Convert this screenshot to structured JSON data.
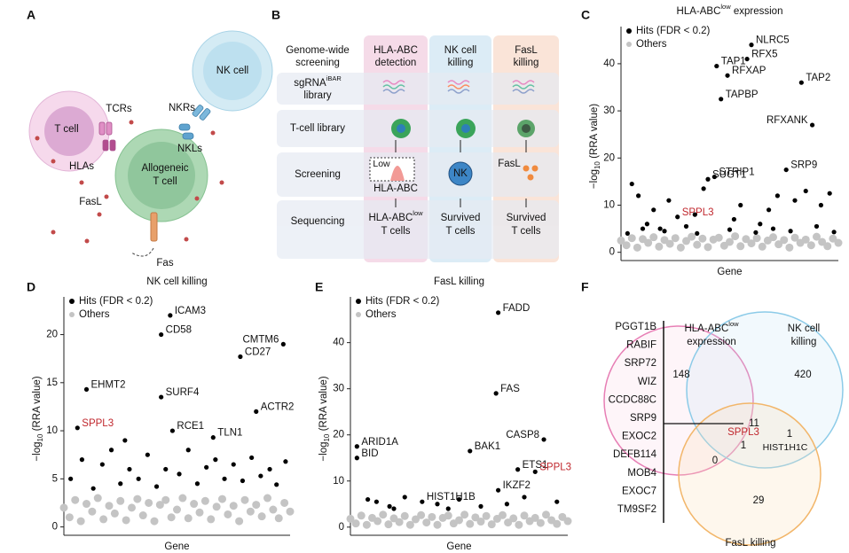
{
  "panels": {
    "a": "A",
    "b": "B",
    "c": "C",
    "d": "D",
    "e": "E",
    "f": "F"
  },
  "panel_a": {
    "t_cell": "T cell",
    "nk_cell": "NK cell",
    "tcrs": "TCRs",
    "hlas": "HLAs",
    "nkrs": "NKRs",
    "nkls": "NKLs",
    "allogeneic_lines": [
      "Allogeneic",
      "T cell"
    ],
    "fasl": "FasL",
    "fas": "Fas"
  },
  "panel_b": {
    "columns": [
      [
        "Genome-wide",
        "screening"
      ],
      [
        "HLA-ABC",
        "detection"
      ],
      [
        "NK cell",
        "killing"
      ],
      [
        "FasL",
        "killing"
      ]
    ],
    "rows": {
      "sgrna": "sgRNA",
      "sgrna_sup": "iBAR",
      "sgrna_line2": "library",
      "tcell": "T-cell library",
      "screening": "Screening",
      "sequencing": "Sequencing"
    },
    "screening_cells": {
      "low": "Low",
      "hla": "HLA-ABC",
      "nk": "NK",
      "fasl": "FasL"
    },
    "sequencing_cells": {
      "hla": "HLA-ABC",
      "hla_sup": "low",
      "hla_line2": "T cells",
      "nk": [
        "Survived",
        "T cells"
      ],
      "fasl": [
        "Survived",
        "T cells"
      ]
    }
  },
  "chart_data": [
    {
      "type": "scatter",
      "title": "HLA-ABC",
      "title_superscript": "low",
      "title_suffix": " expression",
      "ylabel": {
        "prefix": "−log",
        "subscript": "10",
        "suffix": " (RRA value)"
      },
      "xlabel": "Gene",
      "xlim": [
        0,
        100
      ],
      "ylim": [
        -1,
        46
      ],
      "yticks": [
        0,
        10,
        20,
        30,
        40
      ],
      "highlight": "SPPL3",
      "highlight_color": "#c0272d",
      "series": [
        {
          "name": "Others",
          "color": "#c4c4c4",
          "x": [
            0,
            2.5,
            5,
            7.5,
            10,
            12.5,
            15,
            17.5,
            20,
            22.5,
            25,
            27.5,
            30,
            32.5,
            35,
            37.5,
            40,
            42.5,
            45,
            47.5,
            50,
            52.5,
            55,
            57.5,
            60,
            62.5,
            65,
            67.5,
            70,
            72.5,
            75,
            77.5,
            80,
            82.5,
            85,
            87.5,
            90,
            92.5,
            95,
            97.5,
            100
          ],
          "values": [
            2.5,
            1.5,
            3,
            1,
            2.8,
            2,
            3.2,
            1.2,
            2.6,
            1.8,
            3,
            1,
            2.4,
            3.3,
            1.6,
            2.9,
            1.1,
            2.7,
            3.1,
            1.4,
            2.2,
            3.4,
            1.3,
            2.8,
            1.9,
            3,
            1.2,
            2.5,
            3.2,
            1.7,
            2.6,
            1,
            3.1,
            2,
            2.7,
            1.5,
            3.3,
            2.2,
            1.3,
            2.9,
            2
          ]
        },
        {
          "name": "Hits (FDR < 0.2)",
          "color": "#000000",
          "x": [
            60,
            58,
            44,
            49,
            83,
            46,
            88,
            76,
            40,
            43,
            26,
            5,
            8,
            12,
            15,
            18,
            22,
            30,
            34,
            38,
            52,
            55,
            64,
            68,
            72,
            80,
            85,
            92,
            96,
            3,
            10,
            20,
            35,
            50,
            62,
            70,
            78,
            90,
            98
          ],
          "values": [
            44,
            41,
            39.5,
            37.5,
            36,
            32.5,
            27,
            17.5,
            15.5,
            16,
            7.5,
            14.5,
            12,
            6,
            9,
            5,
            11,
            5.5,
            8,
            13.5,
            7,
            10,
            6,
            9,
            12,
            11,
            13,
            10,
            12.5,
            4,
            5,
            4.5,
            4,
            4.8,
            4.2,
            5,
            4.5,
            5.5,
            4.3
          ],
          "point_labels": [
            "NLRC5",
            "RFX5",
            "TAP1",
            "RFXAP",
            "TAP2",
            "TAPBP",
            "RFXANK",
            "SRP9",
            "SUGT1",
            "STRIP1",
            "SPPL3",
            null,
            null,
            null,
            null,
            null,
            null,
            null,
            null,
            null,
            null,
            null,
            null,
            null,
            null,
            null,
            null,
            null,
            null,
            null,
            null,
            null,
            null,
            null,
            null,
            null,
            null,
            null,
            null
          ]
        }
      ]
    },
    {
      "type": "scatter",
      "title": "NK cell killing",
      "ylabel": {
        "prefix": "−log",
        "subscript": "10",
        "suffix": " (RRA value)"
      },
      "xlabel": "Gene",
      "xlim": [
        0,
        100
      ],
      "ylim": [
        -0.5,
        23
      ],
      "yticks": [
        0,
        5,
        10,
        15,
        20
      ],
      "highlight": "SPPL3",
      "highlight_color": "#c0272d",
      "series": [
        {
          "name": "Others",
          "color": "#c4c4c4",
          "x": [
            0,
            2.5,
            5,
            7.5,
            10,
            12.5,
            15,
            17.5,
            20,
            22.5,
            25,
            27.5,
            30,
            32.5,
            35,
            37.5,
            40,
            42.5,
            45,
            47.5,
            50,
            52.5,
            55,
            57.5,
            60,
            62.5,
            65,
            67.5,
            70,
            72.5,
            75,
            77.5,
            80,
            82.5,
            85,
            87.5,
            90,
            92.5,
            95,
            97.5,
            100
          ],
          "values": [
            2,
            1,
            2.8,
            0.6,
            2.4,
            1.6,
            3,
            0.8,
            2.2,
            1.4,
            2.7,
            0.7,
            2,
            2.9,
            1.2,
            2.5,
            0.6,
            2.3,
            2.8,
            1,
            1.8,
            3,
            0.9,
            2.4,
            1.5,
            2.7,
            0.8,
            2.1,
            2.9,
            1.3,
            2.2,
            0.6,
            2.8,
            1.6,
            2.3,
            1.1,
            3,
            1.8,
            0.9,
            2.5,
            1.6
          ]
        },
        {
          "name": "Hits (FDR < 0.2)",
          "color": "#000000",
          "x": [
            47,
            43,
            97,
            78,
            10,
            43,
            85,
            6,
            48,
            66,
            3,
            8,
            13,
            17,
            21,
            25,
            29,
            33,
            37,
            41,
            45,
            51,
            55,
            59,
            63,
            67,
            71,
            75,
            79,
            83,
            87,
            91,
            94,
            98,
            27
          ],
          "values": [
            22,
            20,
            19,
            17.7,
            14.3,
            13.5,
            12,
            10.3,
            10,
            9.3,
            5,
            7,
            4,
            6.5,
            8,
            4.5,
            6,
            5,
            7.5,
            4.2,
            6,
            5.5,
            8,
            4.5,
            6.2,
            7,
            5,
            6.5,
            4.8,
            7.2,
            5.3,
            6,
            4.4,
            6.8,
            9
          ],
          "point_labels": [
            "ICAM3",
            "CD58",
            "CMTM6",
            "CD27",
            "EHMT2",
            "SURF4",
            "ACTR2",
            "SPPL3",
            "RCE1",
            "TLN1",
            null,
            null,
            null,
            null,
            null,
            null,
            null,
            null,
            null,
            null,
            null,
            null,
            null,
            null,
            null,
            null,
            null,
            null,
            null,
            null,
            null,
            null,
            null,
            null,
            null
          ]
        }
      ]
    },
    {
      "type": "scatter",
      "title": "FasL killing",
      "ylabel": {
        "prefix": "−log",
        "subscript": "10",
        "suffix": " (RRA value)"
      },
      "xlabel": "Gene",
      "xlim": [
        0,
        100
      ],
      "ylim": [
        -1,
        48
      ],
      "yticks": [
        0,
        10,
        20,
        30,
        40
      ],
      "highlight": "SPPL3",
      "highlight_color": "#c0272d",
      "series": [
        {
          "name": "Others",
          "color": "#c4c4c4",
          "x": [
            0,
            2.5,
            5,
            7.5,
            10,
            12.5,
            15,
            17.5,
            20,
            22.5,
            25,
            27.5,
            30,
            32.5,
            35,
            37.5,
            40,
            42.5,
            45,
            47.5,
            50,
            52.5,
            55,
            57.5,
            60,
            62.5,
            65,
            67.5,
            70,
            72.5,
            75,
            77.5,
            80,
            82.5,
            85,
            87.5,
            90,
            92.5,
            95,
            97.5,
            100
          ],
          "values": [
            1.8,
            0.8,
            2.5,
            0.5,
            2,
            1.3,
            2.7,
            0.6,
            1.9,
            1.1,
            2.4,
            0.5,
            1.7,
            2.6,
            1,
            2.2,
            0.5,
            2,
            2.5,
            0.8,
            1.5,
            2.7,
            0.7,
            2.1,
            1.2,
            2.4,
            0.6,
            1.8,
            2.6,
            1,
            1.9,
            0.5,
            2.5,
            1.3,
            2,
            0.9,
            2.7,
            1.5,
            0.7,
            2.2,
            1.3
          ]
        },
        {
          "name": "Hits (FDR < 0.2)",
          "color": "#000000",
          "x": [
            68,
            67,
            89,
            3,
            3,
            55,
            77,
            85,
            68,
            33,
            8,
            12,
            18,
            25,
            40,
            45,
            50,
            60,
            72,
            80,
            95,
            20
          ],
          "values": [
            46.5,
            29,
            19,
            17.5,
            15,
            16.5,
            12.5,
            12,
            8,
            5.5,
            6,
            5.5,
            4.5,
            6.5,
            5,
            4,
            6,
            4.5,
            5,
            6.5,
            5.5,
            4
          ],
          "point_labels": [
            "FADD",
            "FAS",
            "CASP8",
            "ARID1A",
            "BID",
            "BAK1",
            "ETS1",
            "SPPL3",
            "IKZF2",
            "HIST1H1B",
            null,
            null,
            null,
            null,
            null,
            null,
            null,
            null,
            null,
            null,
            null,
            null
          ]
        }
      ]
    }
  ],
  "venn": {
    "gene_list": [
      "PGGT1B",
      "RABIF",
      "SRP72",
      "WIZ",
      "CCDC88C",
      "SRP9",
      "EXOC2",
      "DEFB114",
      "MOB4",
      "EXOC7",
      "TM9SF2"
    ],
    "hla_label": "HLA-ABC",
    "hla_sup": "low",
    "hla_line2": "expression",
    "nk_label": [
      "NK cell",
      "killing"
    ],
    "fasl_label": "FasL killing",
    "hla_only": 148,
    "nk_only": 420,
    "hla_nk": 11,
    "hla_fasl": 0,
    "all": 1,
    "nk_fasl": 1,
    "fasl_only": 29,
    "all_gene": "SPPL3",
    "nk_fasl_gene": "HIST1H1C"
  }
}
